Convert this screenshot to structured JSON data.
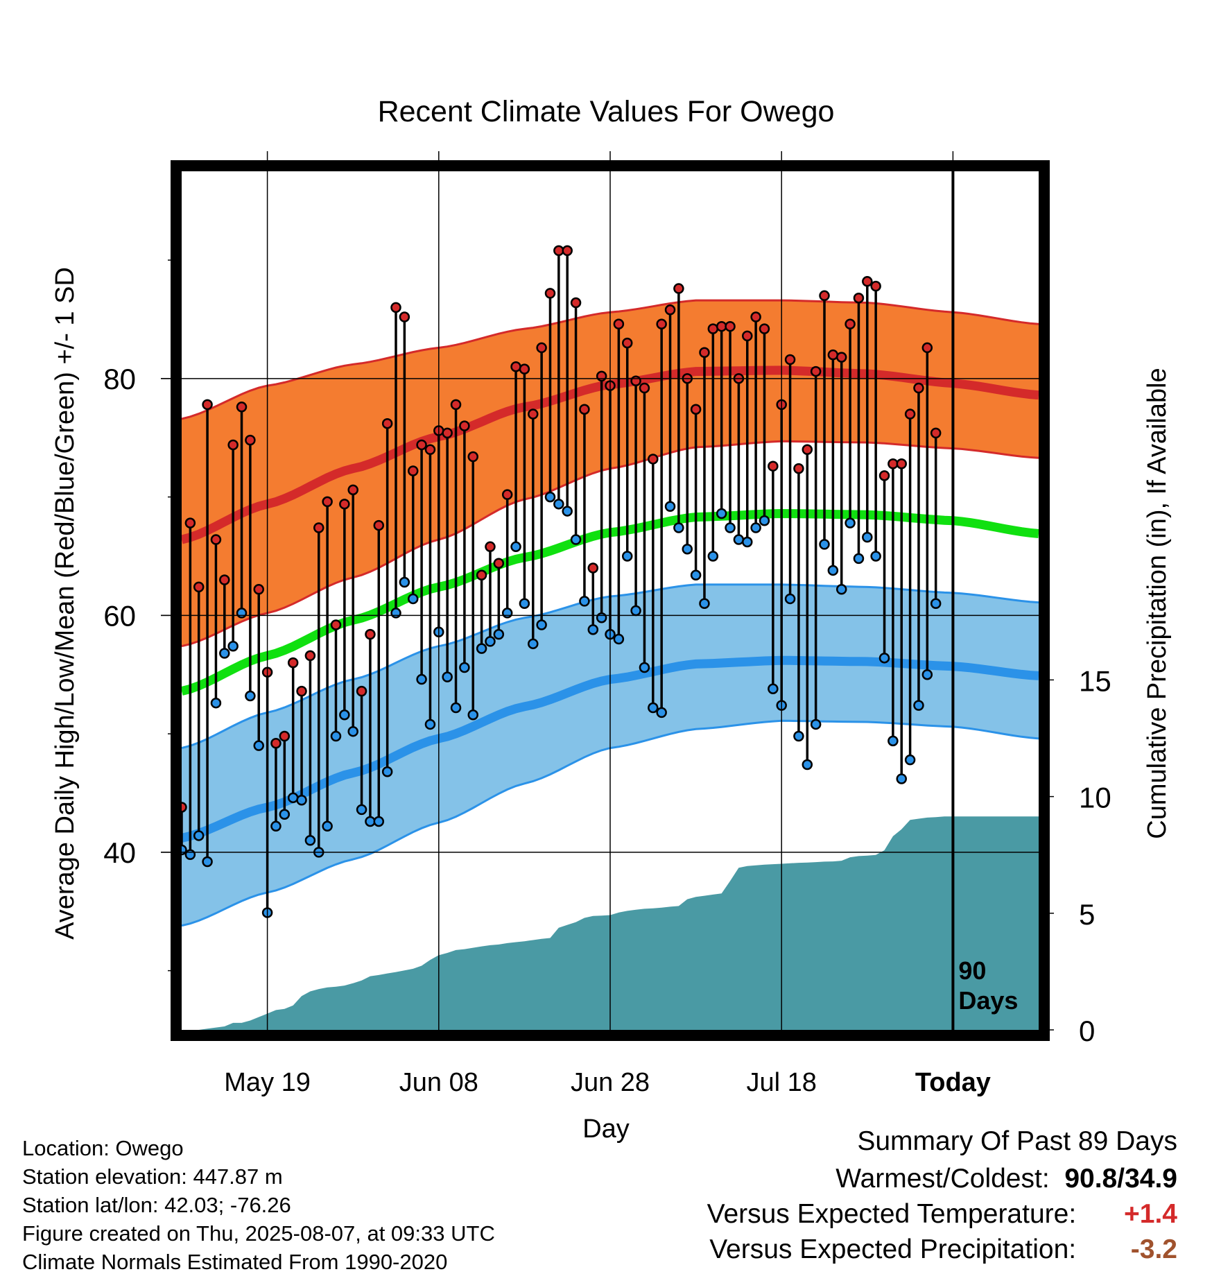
{
  "title": "Recent Climate Values For Owego",
  "ylabel_left": "Average Daily High/Low/Mean (Red/Blue/Green) +/- 1 SD",
  "ylabel_right": "Cumulative Precipitation (in), If Available",
  "xlabel": "Day",
  "footer": {
    "location": "Location: Owego",
    "elevation": "Station elevation: 447.87 m",
    "latlon": "Station lat/lon: 42.03; -76.26",
    "created": "Figure created on Thu, 2025-08-07, at 09:33 UTC",
    "normals": "Climate Normals Estimated From 1990-2020"
  },
  "summary": {
    "heading": "Summary Of Past 89 Days",
    "warm_cold_label": "Warmest/Coldest:",
    "warm_cold_value": "90.8/34.9",
    "temp_label": "Versus Expected Temperature:",
    "temp_value": "+1.4",
    "precip_label": "Versus Expected Precipitation:",
    "precip_value": "-3.2"
  },
  "colors": {
    "high_band": "#f47c30",
    "high_line": "#d42a2a",
    "low_band": "#84c2e8",
    "low_line": "#2b92e8",
    "mean_line": "#10e010",
    "precip": "#4a9aa4",
    "temp_value": "#d42a2a",
    "precip_value": "#a0522d"
  },
  "chart_data": {
    "type": "line",
    "x_ticks": [
      {
        "day": 10,
        "label": "May 19"
      },
      {
        "day": 30,
        "label": "Jun 08"
      },
      {
        "day": 50,
        "label": "Jun 28"
      },
      {
        "day": 70,
        "label": "Jul 18"
      },
      {
        "day": 90,
        "label": "Today"
      }
    ],
    "xlim": [
      0,
      100
    ],
    "ylim_left": [
      25,
      97.5
    ],
    "ylim_right": [
      0,
      36.8
    ],
    "y_ticks_left": [
      40,
      60,
      80
    ],
    "y_ticks_right": [
      0,
      5,
      10,
      15
    ],
    "grid": true,
    "today_marker": {
      "day": 90,
      "label_line1": "90",
      "label_line2": "Days"
    },
    "normals": {
      "x": [
        0,
        10,
        20,
        30,
        40,
        50,
        60,
        70,
        80,
        90,
        100
      ],
      "high_mean": [
        66.4,
        69.4,
        72.4,
        75.1,
        77.6,
        79.5,
        80.6,
        80.7,
        80.4,
        79.6,
        78.6
      ],
      "high_upper": [
        76.6,
        79.4,
        81.2,
        82.6,
        84.2,
        85.6,
        86.6,
        86.6,
        86.4,
        85.6,
        84.6
      ],
      "high_lower": [
        57.4,
        60.2,
        63.2,
        66.4,
        69.8,
        72.4,
        74.2,
        74.7,
        74.6,
        74.1,
        73.3
      ],
      "low_mean": [
        41.2,
        43.8,
        46.7,
        49.6,
        52.3,
        54.6,
        55.9,
        56.2,
        56.1,
        55.7,
        54.9
      ],
      "low_upper": [
        48.8,
        51.8,
        54.6,
        57.4,
        59.8,
        61.6,
        62.6,
        62.6,
        62.4,
        61.9,
        61.1
      ],
      "low_lower": [
        33.8,
        36.6,
        39.4,
        42.5,
        45.8,
        48.8,
        50.4,
        51.1,
        51.0,
        50.6,
        49.6
      ],
      "mean": [
        53.6,
        56.6,
        59.6,
        62.4,
        64.9,
        67.0,
        68.3,
        68.6,
        68.5,
        68.0,
        66.9
      ]
    },
    "series": [
      {
        "name": "High",
        "values": [
          43.8,
          67.8,
          62.4,
          77.8,
          66.4,
          63.0,
          74.4,
          77.6,
          74.8,
          62.2,
          55.2,
          49.2,
          49.8,
          56.0,
          53.6,
          56.6,
          67.4,
          69.6,
          59.2,
          69.4,
          70.6,
          53.6,
          58.4,
          67.6,
          76.2,
          86.0,
          85.2,
          72.2,
          74.4,
          74.0,
          75.6,
          75.4,
          77.8,
          76.0,
          73.4,
          63.4,
          65.8,
          64.4,
          70.2,
          81.0,
          80.8,
          77.0,
          82.6,
          87.2,
          90.8,
          90.8,
          86.4,
          77.4,
          64.0,
          80.2,
          79.4,
          84.6,
          83.0,
          79.8,
          79.2,
          73.2,
          84.6,
          85.8,
          87.6,
          80.0,
          77.4,
          82.2,
          84.2,
          84.4,
          84.4,
          80.0,
          83.6,
          85.2,
          84.2,
          72.6,
          77.8,
          81.6,
          72.4,
          74.0,
          80.6,
          87.0,
          82.0,
          81.8,
          84.6,
          86.8,
          88.2,
          87.8,
          71.8,
          72.8,
          72.8,
          77.0,
          79.2,
          82.6,
          75.4
        ]
      },
      {
        "name": "Low",
        "values": [
          40.2,
          39.8,
          41.4,
          39.2,
          52.6,
          56.8,
          57.4,
          60.2,
          53.2,
          49.0,
          34.9,
          42.2,
          43.2,
          44.6,
          44.4,
          41.0,
          40.0,
          42.2,
          49.8,
          51.6,
          50.2,
          43.6,
          42.6,
          42.6,
          46.8,
          60.2,
          62.8,
          61.4,
          54.6,
          50.8,
          58.6,
          54.8,
          52.2,
          55.6,
          51.6,
          57.2,
          57.8,
          58.4,
          60.2,
          65.8,
          61.0,
          57.6,
          59.2,
          70.0,
          69.4,
          68.8,
          66.4,
          61.2,
          58.8,
          59.8,
          58.4,
          58.0,
          65.0,
          60.4,
          55.6,
          52.2,
          51.8,
          69.2,
          67.4,
          65.6,
          63.4,
          61.0,
          65.0,
          68.6,
          67.4,
          66.4,
          66.2,
          67.4,
          68.0,
          53.8,
          52.4,
          61.4,
          49.8,
          47.4,
          50.8,
          66.0,
          63.8,
          62.2,
          67.8,
          64.8,
          66.6,
          65.0,
          56.4,
          49.4,
          46.2,
          47.8,
          52.4,
          55.0,
          61.0
        ]
      },
      {
        "name": "Cumulative Precipitation",
        "values": [
          0.0,
          0.0,
          0.0,
          0.05,
          0.1,
          0.15,
          0.3,
          0.3,
          0.4,
          0.55,
          0.7,
          0.85,
          0.9,
          1.05,
          1.45,
          1.65,
          1.75,
          1.82,
          1.85,
          1.9,
          2.0,
          2.12,
          2.3,
          2.35,
          2.42,
          2.48,
          2.55,
          2.62,
          2.75,
          3.0,
          3.2,
          3.3,
          3.42,
          3.46,
          3.52,
          3.58,
          3.63,
          3.66,
          3.72,
          3.76,
          3.8,
          3.85,
          3.9,
          3.94,
          4.38,
          4.5,
          4.62,
          4.8,
          4.88,
          4.9,
          4.92,
          5.03,
          5.1,
          5.15,
          5.19,
          5.21,
          5.24,
          5.28,
          5.31,
          5.6,
          5.7,
          5.75,
          5.8,
          5.85,
          6.38,
          6.95,
          7.02,
          7.05,
          7.08,
          7.1,
          7.12,
          7.14,
          7.16,
          7.17,
          7.19,
          7.21,
          7.22,
          7.25,
          7.4,
          7.45,
          7.47,
          7.5,
          7.7,
          8.3,
          8.6,
          9.0,
          9.05,
          9.1,
          9.12,
          9.15,
          9.15,
          9.15,
          9.15,
          9.15,
          9.15,
          9.15,
          9.15,
          9.15,
          9.15,
          9.15,
          9.15
        ]
      }
    ]
  }
}
